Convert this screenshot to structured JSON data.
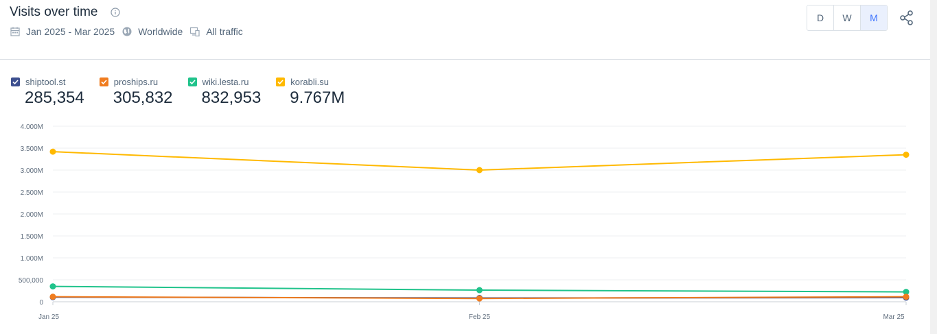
{
  "header": {
    "title": "Visits over time",
    "date_range": "Jan 2025 - Mar 2025",
    "region": "Worldwide",
    "traffic": "All traffic"
  },
  "granularity": {
    "options": [
      "D",
      "W",
      "M"
    ],
    "active": "M"
  },
  "icons": {
    "info": "info-icon",
    "calendar": "calendar-icon",
    "globe": "globe-icon",
    "traffic": "devices-icon",
    "share": "share-icon"
  },
  "legend": [
    {
      "name": "shiptool.st",
      "total": "285,354",
      "color": "#3d4f8f"
    },
    {
      "name": "proships.ru",
      "total": "305,832",
      "color": "#f07c1f"
    },
    {
      "name": "wiki.lesta.ru",
      "total": "832,953",
      "color": "#20c38b"
    },
    {
      "name": "korabli.su",
      "total": "9.767M",
      "color": "#ffb900"
    }
  ],
  "chart_data": {
    "type": "line",
    "categories": [
      "Jan 25",
      "Feb 25",
      "Mar 25"
    ],
    "y_tick_labels": [
      "0",
      "500,000",
      "1.000M",
      "1.500M",
      "2.000M",
      "2.500M",
      "3.000M",
      "3.500M",
      "4.000M"
    ],
    "ylim": [
      0,
      4000000
    ],
    "grid": true,
    "series": [
      {
        "name": "korabli.su",
        "color": "#ffb900",
        "values": [
          3420000,
          3000000,
          3350000
        ]
      },
      {
        "name": "wiki.lesta.ru",
        "color": "#20c38b",
        "values": [
          350000,
          265000,
          225000
        ]
      },
      {
        "name": "shiptool.st",
        "color": "#3d4f8f",
        "values": [
          105000,
          85000,
          95000
        ]
      },
      {
        "name": "proships.ru",
        "color": "#f07c1f",
        "values": [
          115000,
          75000,
          115000
        ]
      }
    ]
  }
}
